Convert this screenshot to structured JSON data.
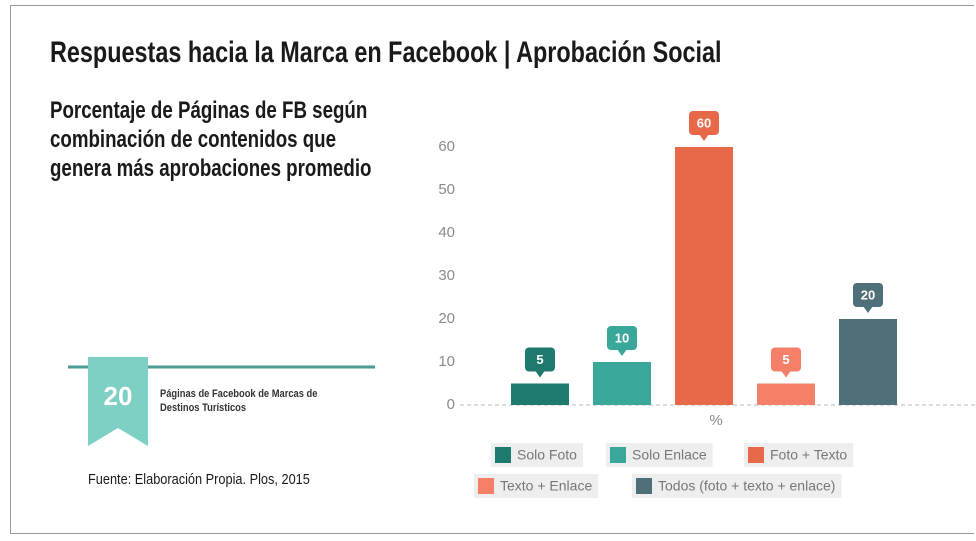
{
  "chart_data": {
    "type": "bar",
    "title": "Respuestas hacia la Marca en Facebook  |  Aprobación Social",
    "subtitle": "Porcentaje de Páginas de FB según combinación de contenidos que genera más aprobaciones promedio",
    "categories": [
      "Solo Foto",
      "Solo Enlace",
      "Foto + Texto",
      "Texto + Enlace",
      "Todos (foto + texto + enlace)"
    ],
    "values": [
      5,
      10,
      60,
      5,
      20
    ],
    "colors": [
      "#1f7a6e",
      "#3aa79b",
      "#e8694a",
      "#f5806a",
      "#4f7079"
    ],
    "xlabel": "%",
    "ylim": [
      0,
      60
    ],
    "yticks": [
      0,
      10,
      20,
      30,
      40,
      50,
      60
    ],
    "badge_number": "20",
    "badge_text": "Páginas de Facebook de Marcas de Destinos Turísticos",
    "source": "Fuente: Elaboración Propia. Plos, 2015"
  }
}
